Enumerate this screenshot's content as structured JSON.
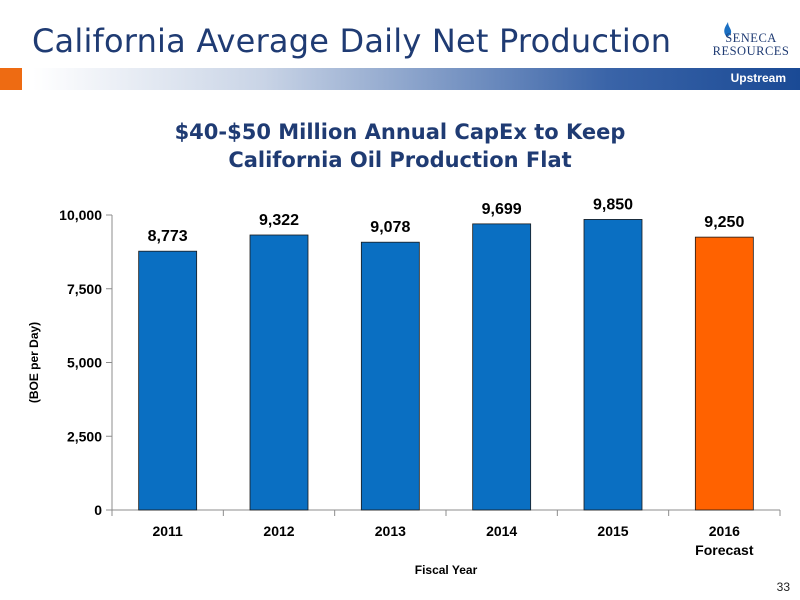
{
  "header": {
    "title": "California Average Daily Net Production",
    "logo_line1": "SENECA",
    "logo_line2": "RESOURCES",
    "section_label": "Upstream"
  },
  "page_number": "33",
  "colors": {
    "title_blue": "#1f3b73",
    "bar_blue": "#0a6fc2",
    "bar_orange": "#ff6200",
    "accent_orange": "#ee6b12"
  },
  "chart_data": {
    "type": "bar",
    "title_line1": "$40-$50 Million Annual CapEx to Keep",
    "title_line2": "California Oil Production Flat",
    "xlabel": "Fiscal Year",
    "ylabel": "(BOE per Day)",
    "categories": [
      "2011",
      "2012",
      "2013",
      "2014",
      "2015",
      "2016"
    ],
    "category_sublabels": [
      "",
      "",
      "",
      "",
      "",
      "Forecast"
    ],
    "values": [
      8773,
      9322,
      9078,
      9699,
      9850,
      9250
    ],
    "value_labels": [
      "8,773",
      "9,322",
      "9,078",
      "9,699",
      "9,850",
      "9,250"
    ],
    "bar_colors": [
      "#0a6fc2",
      "#0a6fc2",
      "#0a6fc2",
      "#0a6fc2",
      "#0a6fc2",
      "#ff6200"
    ],
    "ylim": [
      0,
      10000
    ],
    "yticks": [
      0,
      2500,
      5000,
      7500,
      10000
    ],
    "ytick_labels": [
      "0",
      "2,500",
      "5,000",
      "7,500",
      "10,000"
    ],
    "grid": false,
    "legend": "none"
  }
}
